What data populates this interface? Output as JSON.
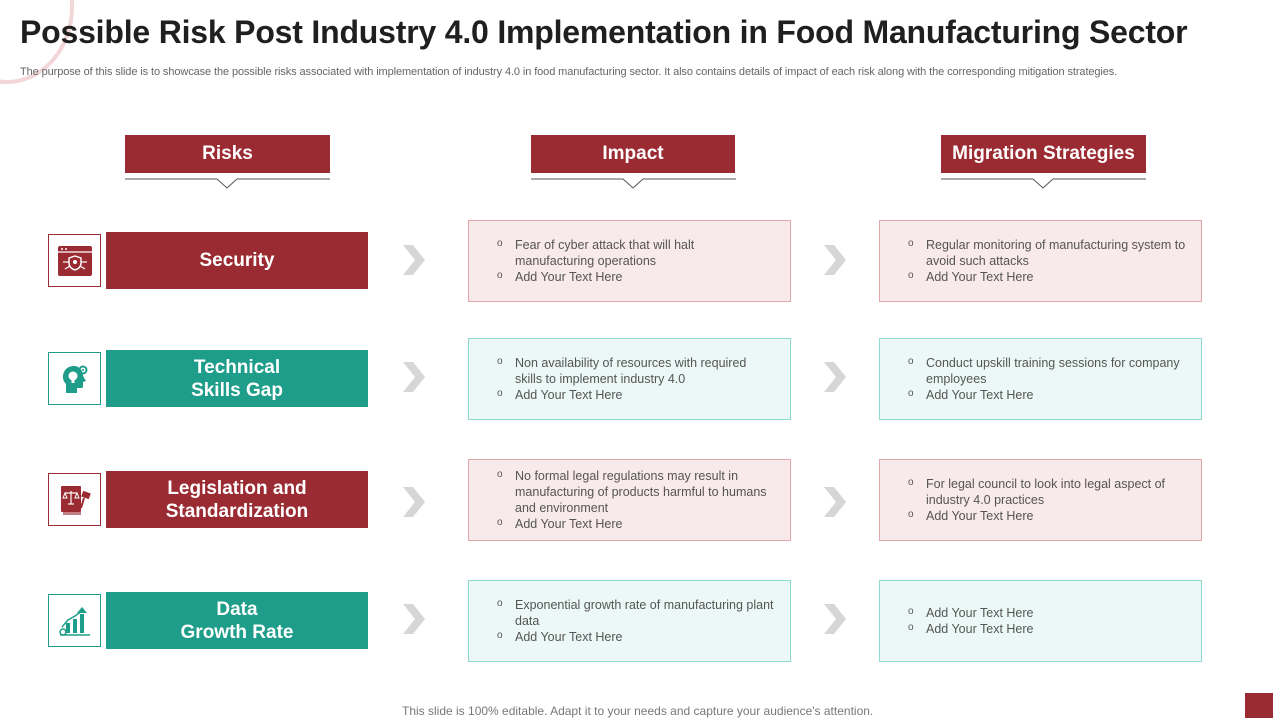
{
  "title": "Possible Risk Post Industry 4.0 Implementation in Food Manufacturing Sector",
  "subtitle": "The purpose of this slide is to showcase the possible risks associated with implementation of industry 4.0 in food manufacturing sector. It also contains details of impact of each risk along with the corresponding mitigation strategies.",
  "headers": {
    "risks": "Risks",
    "impact": "Impact",
    "strategies": "Migration Strategies"
  },
  "rows": [
    {
      "risk": "Security",
      "icon": "cyber-security-icon",
      "color": "#9b2b32",
      "impact": [
        "Fear of cyber attack that will halt manufacturing operations",
        "Add Your Text Here"
      ],
      "strategy": [
        "Regular monitoring of manufacturing system to avoid such attacks",
        "Add Your Text Here"
      ]
    },
    {
      "risk": "Technical\nSkills Gap",
      "icon": "head-gear-icon",
      "color": "#1e9e8a",
      "impact": [
        "Non availability of resources with required skills to implement industry 4.0",
        "Add Your Text Here"
      ],
      "strategy": [
        "Conduct upskill training sessions for company employees",
        "Add Your Text Here"
      ]
    },
    {
      "risk": "Legislation and\nStandardization",
      "icon": "law-book-gavel-icon",
      "color": "#9b2b32",
      "impact": [
        "No formal legal regulations may result in manufacturing of products harmful to humans and environment",
        "Add Your Text Here"
      ],
      "strategy": [
        "For legal council to look into legal aspect of industry 4.0 practices",
        "Add Your Text Here"
      ]
    },
    {
      "risk": "Data\nGrowth Rate",
      "icon": "growth-chart-icon",
      "color": "#1e9e8a",
      "impact": [
        "Exponential growth rate of manufacturing plant data",
        "Add Your Text Here"
      ],
      "strategy": [
        "Add Your Text Here",
        "Add Your Text Here"
      ]
    }
  ],
  "footer": "This slide is 100% editable. Adapt it to your needs and capture your audience's attention."
}
